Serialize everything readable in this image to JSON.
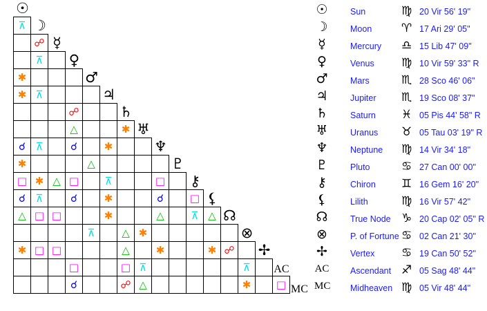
{
  "planets": [
    {
      "symbol": "☉",
      "name": "Sun",
      "icon": "sun-icon",
      "sign": "♍",
      "sign_icon": "virgo-icon",
      "position": "20 Vir 56' 19\""
    },
    {
      "symbol": "☽",
      "name": "Moon",
      "icon": "moon-icon",
      "sign": "♈",
      "sign_icon": "aries-icon",
      "position": "17 Ari 29' 05\""
    },
    {
      "symbol": "☿",
      "name": "Mercury",
      "icon": "mercury-icon",
      "sign": "♎",
      "sign_icon": "libra-icon",
      "position": "15 Lib 47' 09\""
    },
    {
      "symbol": "♀",
      "name": "Venus",
      "icon": "venus-icon",
      "sign": "♍",
      "sign_icon": "virgo-icon",
      "position": "10 Vir 59' 33\" R"
    },
    {
      "symbol": "♂",
      "name": "Mars",
      "icon": "mars-icon",
      "sign": "♏",
      "sign_icon": "scorpio-icon",
      "position": "28 Sco 46' 06\""
    },
    {
      "symbol": "♃",
      "name": "Jupiter",
      "icon": "jupiter-icon",
      "sign": "♏",
      "sign_icon": "scorpio-icon",
      "position": "19 Sco 08' 37\""
    },
    {
      "symbol": "♄",
      "name": "Saturn",
      "icon": "saturn-icon",
      "sign": "♓",
      "sign_icon": "pisces-icon",
      "position": "05 Pis 44' 58\" R"
    },
    {
      "symbol": "♅",
      "name": "Uranus",
      "icon": "uranus-icon",
      "sign": "♉",
      "sign_icon": "taurus-icon",
      "position": "05 Tau 03' 19\" R"
    },
    {
      "symbol": "♆",
      "name": "Neptune",
      "icon": "neptune-icon",
      "sign": "♍",
      "sign_icon": "virgo-icon",
      "position": "14 Vir 34' 18\""
    },
    {
      "symbol": "♇",
      "name": "Pluto",
      "icon": "pluto-icon",
      "sign": "♋",
      "sign_icon": "cancer-icon",
      "position": "27 Can 00' 00\""
    },
    {
      "symbol": "⚷",
      "name": "Chiron",
      "icon": "chiron-icon",
      "sign": "♊",
      "sign_icon": "gemini-icon",
      "position": "16 Gem 16' 20\""
    },
    {
      "symbol": "⚸",
      "name": "Lilith",
      "icon": "lilith-icon",
      "sign": "♍",
      "sign_icon": "virgo-icon",
      "position": "16 Vir 57' 42\""
    },
    {
      "symbol": "☊",
      "name": "True Node",
      "icon": "node-icon",
      "sign": "♑",
      "sign_icon": "capricorn-icon",
      "position": "20 Cap 02' 05\" R"
    },
    {
      "symbol": "⊗",
      "name": "P. of Fortune",
      "icon": "part-of-fortune-icon",
      "sign": "♋",
      "sign_icon": "cancer-icon",
      "position": "02 Can 21' 30\""
    },
    {
      "symbol": "✢",
      "name": "Vertex",
      "icon": "vertex-icon",
      "sign": "♋",
      "sign_icon": "cancer-icon",
      "position": "19 Can 50' 52\""
    },
    {
      "symbol": "AC",
      "name": "Ascendant",
      "icon": "ascendant-icon",
      "sign": "♐",
      "sign_icon": "sagittarius-icon",
      "position": "05 Sag 48' 44\""
    },
    {
      "symbol": "MC",
      "name": "Midheaven",
      "icon": "midheaven-icon",
      "sign": "♍",
      "sign_icon": "virgo-icon",
      "position": "05 Vir 48' 44\""
    }
  ],
  "aspect_types": {
    "C": {
      "name": "conjunction",
      "symbol": "☌",
      "color": "#0000ff"
    },
    "O": {
      "name": "opposition",
      "symbol": "☍",
      "color": "#ff0000"
    },
    "T": {
      "name": "trine",
      "symbol": "△",
      "color": "#00c000"
    },
    "Q": {
      "name": "square",
      "symbol": "□",
      "color": "#ff00ff"
    },
    "S": {
      "name": "sextile",
      "symbol": "✱",
      "color": "#ff8000"
    },
    "X": {
      "name": "quincunx",
      "symbol": "⊼",
      "color": "#00e0e0"
    }
  },
  "aspect_grid": [
    [],
    [
      "X"
    ],
    [
      "",
      "O"
    ],
    [
      "",
      "X",
      ""
    ],
    [
      "S",
      "",
      "",
      ""
    ],
    [
      "S",
      "X",
      "",
      "",
      ""
    ],
    [
      "",
      "",
      "",
      "O",
      "",
      ""
    ],
    [
      "",
      "",
      "",
      "T",
      "",
      "",
      "S"
    ],
    [
      "C",
      "X",
      "",
      "C",
      "",
      "S",
      "",
      ""
    ],
    [
      "S",
      "",
      "",
      "",
      "T",
      "",
      "",
      "",
      ""
    ],
    [
      "Q",
      "S",
      "T",
      "Q",
      "",
      "X",
      "",
      "",
      "Q",
      ""
    ],
    [
      "C",
      "X",
      "",
      "C",
      "",
      "S",
      "",
      "",
      "C",
      "",
      "Q"
    ],
    [
      "T",
      "Q",
      "Q",
      "",
      "",
      "S",
      "",
      "",
      "T",
      "",
      "X",
      "T"
    ],
    [
      "",
      "",
      "",
      "",
      "X",
      "",
      "T",
      "S",
      "",
      "",
      "",
      "",
      ""
    ],
    [
      "S",
      "Q",
      "Q",
      "",
      "",
      "",
      "T",
      "",
      "S",
      "",
      "",
      "S",
      "O",
      ""
    ],
    [
      "",
      "",
      "",
      "Q",
      "",
      "",
      "Q",
      "X",
      "",
      "",
      "",
      "",
      "",
      "X",
      ""
    ],
    [
      "",
      "",
      "",
      "C",
      "",
      "",
      "O",
      "T",
      "",
      "",
      "",
      "",
      "",
      "S",
      "",
      "Q"
    ]
  ]
}
